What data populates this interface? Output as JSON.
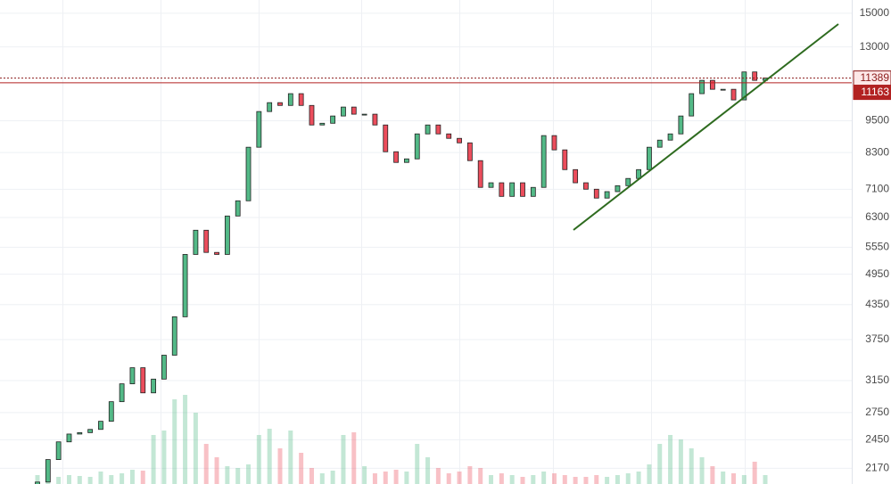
{
  "chart_data": {
    "type": "candlestick",
    "open": [
      2000,
      2047,
      2252,
      2428,
      2510,
      2525,
      2560,
      2650,
      2880,
      3107,
      3327,
      2990,
      3170,
      3509,
      4131,
      5384,
      5967,
      5430,
      5384,
      6339,
      6762,
      8490,
      9880,
      10260,
      10140,
      10660,
      10140,
      9332,
      9400,
      9695,
      10070,
      9770,
      9770,
      9332,
      8329,
      7959,
      8080,
      8985,
      9332,
      8985,
      8816,
      8650,
      8020,
      7158,
      7300,
      6890,
      7300,
      6890,
      7158,
      8920,
      8395,
      7720,
      7300,
      7103,
      6840,
      7030,
      7210,
      7435,
      7720,
      8490,
      8750,
      8985,
      9695,
      10660,
      11280,
      10860,
      10860,
      10380,
      11690,
      11280
    ],
    "close": [
      2047,
      2252,
      2428,
      2510,
      2525,
      2560,
      2650,
      2880,
      3107,
      3327,
      2990,
      3170,
      3509,
      4131,
      5384,
      5967,
      5430,
      5384,
      6339,
      6762,
      8490,
      9880,
      10260,
      10140,
      10660,
      10140,
      9332,
      9400,
      9695,
      10070,
      9770,
      9770,
      9332,
      8329,
      7959,
      8080,
      8985,
      9332,
      8985,
      8816,
      8650,
      8020,
      7158,
      7300,
      6890,
      7300,
      6890,
      7158,
      8920,
      8395,
      7720,
      7300,
      7103,
      6840,
      7030,
      7210,
      7435,
      7720,
      8490,
      8750,
      8985,
      9695,
      10660,
      11280,
      10860,
      10860,
      10380,
      11690,
      11280,
      11390
    ],
    "volume": [
      10,
      12,
      8,
      10,
      9,
      8,
      14,
      10,
      12,
      16,
      15,
      55,
      60,
      95,
      100,
      80,
      45,
      30,
      20,
      18,
      22,
      55,
      62,
      40,
      60,
      35,
      18,
      12,
      15,
      55,
      58,
      20,
      12,
      14,
      16,
      14,
      45,
      30,
      18,
      12,
      14,
      20,
      18,
      10,
      12,
      10,
      8,
      10,
      14,
      12,
      10,
      8,
      8,
      10,
      8,
      10,
      12,
      14,
      22,
      45,
      55,
      50,
      40,
      30,
      20,
      14,
      12,
      10,
      25,
      10
    ],
    "ylim": [
      2030,
      15870
    ],
    "yticks": [
      15000,
      13000,
      9500,
      8300,
      7100,
      6300,
      5550,
      4950,
      4350,
      3750,
      3150,
      2750,
      2450,
      2170
    ],
    "log_scale": true,
    "grid": true,
    "up_color": "#53b987",
    "down_color": "#eb4d5c",
    "price_lines": [
      {
        "value": 11389,
        "style": "dotted",
        "color": "#8b1a1a"
      },
      {
        "value": 11163,
        "style": "solid",
        "color": "#b22222"
      }
    ]
  }
}
